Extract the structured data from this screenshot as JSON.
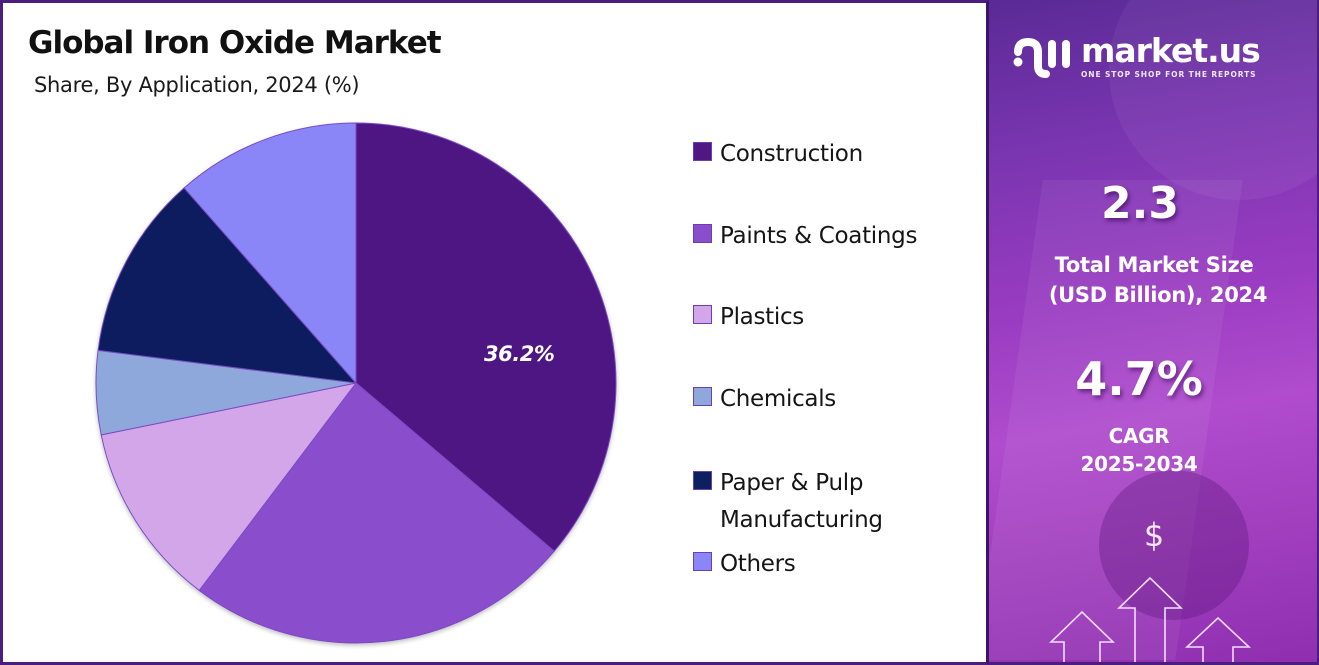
{
  "header": {
    "title": "Global Iron Oxide Market",
    "subtitle": "Share, By Application, 2024 (%)"
  },
  "chart_data": {
    "type": "pie",
    "title": "Global Iron Oxide Market",
    "subtitle": "Share, By Application, 2024 (%)",
    "categories": [
      "Construction",
      "Paints & Coatings",
      "Plastics",
      "Chemicals",
      "Paper & Pulp Manufacturing",
      "Others"
    ],
    "values": [
      36.2,
      24.1,
      11.5,
      5.2,
      11.5,
      11.5
    ],
    "colors": [
      "#4e1782",
      "#8a4dcb",
      "#d3a6ea",
      "#8fa8dc",
      "#0c1f5e",
      "#8b86f7"
    ],
    "data_labels": [
      {
        "category": "Construction",
        "text": "36.2%"
      }
    ],
    "legend_position": "right",
    "start_angle_deg": 0,
    "direction": "clockwise"
  },
  "legend": {
    "items": [
      {
        "label": "Construction",
        "color": "#4e1782"
      },
      {
        "label": "Paints & Coatings",
        "color": "#8a4dcb"
      },
      {
        "label": "Plastics",
        "color": "#d3a6ea"
      },
      {
        "label": "Chemicals",
        "color": "#8fa8dc"
      },
      {
        "label": "Paper & Pulp\nManufacturing",
        "line1": "Paper & Pulp",
        "line2": "Manufacturing",
        "color": "#0c1f5e"
      },
      {
        "label": "Others",
        "color": "#8b86f7"
      }
    ]
  },
  "pie_label": "36.2%",
  "sidebar": {
    "brand_name": "market.us",
    "brand_tagline": "ONE STOP SHOP FOR THE REPORTS",
    "market_size_value": "2.3",
    "market_size_label_line1": "Total Market Size",
    "market_size_label_line2": "(USD Billion), 2024",
    "cagr_value": "4.7%",
    "cagr_label_line1": "CAGR",
    "cagr_label_line2": "2025-2034",
    "dollar_symbol": "$"
  }
}
